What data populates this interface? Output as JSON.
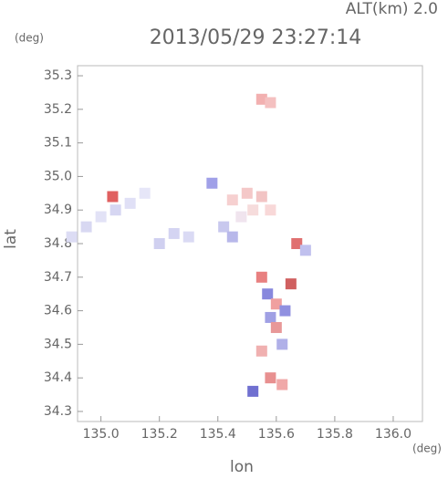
{
  "chart_data": {
    "type": "scatter",
    "title": "2013/05/29 23:27:14",
    "subtitle": "ALT(km) 2.0",
    "y_unit": "(deg)",
    "x_unit": "(deg)",
    "x_label": "lon",
    "y_label": "lat",
    "xlim": [
      134.92,
      136.1
    ],
    "ylim": [
      34.27,
      35.33
    ],
    "xticks": [
      {
        "value": 135,
        "label": "135.0"
      },
      135.2,
      135.4,
      135.6,
      135.8,
      {
        "value": 136,
        "label": "136.0"
      }
    ],
    "yticks": [
      34.3,
      34.4,
      34.5,
      34.6,
      34.7,
      34.8,
      34.9,
      {
        "value": 35,
        "label": "35.0"
      },
      35.1,
      35.2,
      35.3
    ],
    "x": [
      134.9,
      134.95,
      135.0,
      135.05,
      135.1,
      135.15,
      135.2,
      135.25,
      135.3,
      135.04,
      135.45,
      135.5,
      135.55,
      135.52,
      135.48,
      135.58,
      135.42,
      135.45,
      135.55,
      135.57,
      135.6,
      135.58,
      135.6,
      135.62,
      135.55,
      135.65,
      135.63,
      135.67,
      135.7,
      135.55,
      135.58,
      135.62,
      135.58,
      135.52,
      135.38
    ],
    "y": [
      34.82,
      34.85,
      34.88,
      34.9,
      34.92,
      34.95,
      34.8,
      34.83,
      34.82,
      34.94,
      34.93,
      34.95,
      34.94,
      34.9,
      34.88,
      34.9,
      34.85,
      34.82,
      34.7,
      34.65,
      34.62,
      34.58,
      34.55,
      34.5,
      34.48,
      34.68,
      34.6,
      34.8,
      34.78,
      35.23,
      35.22,
      34.38,
      34.4,
      34.36,
      34.98
    ],
    "colors": [
      "#dcdcf4",
      "#d8d8f2",
      "#e2e2f6",
      "#d6d6f2",
      "#e0e0f6",
      "#e6e6f8",
      "#d0d0f0",
      "#d4d4f2",
      "#dadaf4",
      "#e06060",
      "#f6d0d0",
      "#f4c8c8",
      "#f2c4c4",
      "#f6dcdc",
      "#f0e4ee",
      "#f8d8d8",
      "#c8c8ee",
      "#b8b8ea",
      "#e88080",
      "#8888dd",
      "#f0a0a0",
      "#a0a0e4",
      "#e89898",
      "#b0b0e8",
      "#f0b0b0",
      "#d06060",
      "#9090e0",
      "#e07070",
      "#c0c0ee",
      "#f2b0b0",
      "#f4c0c0",
      "#f0a8a8",
      "#e89090",
      "#7070d0",
      "#a0a0e8"
    ]
  }
}
